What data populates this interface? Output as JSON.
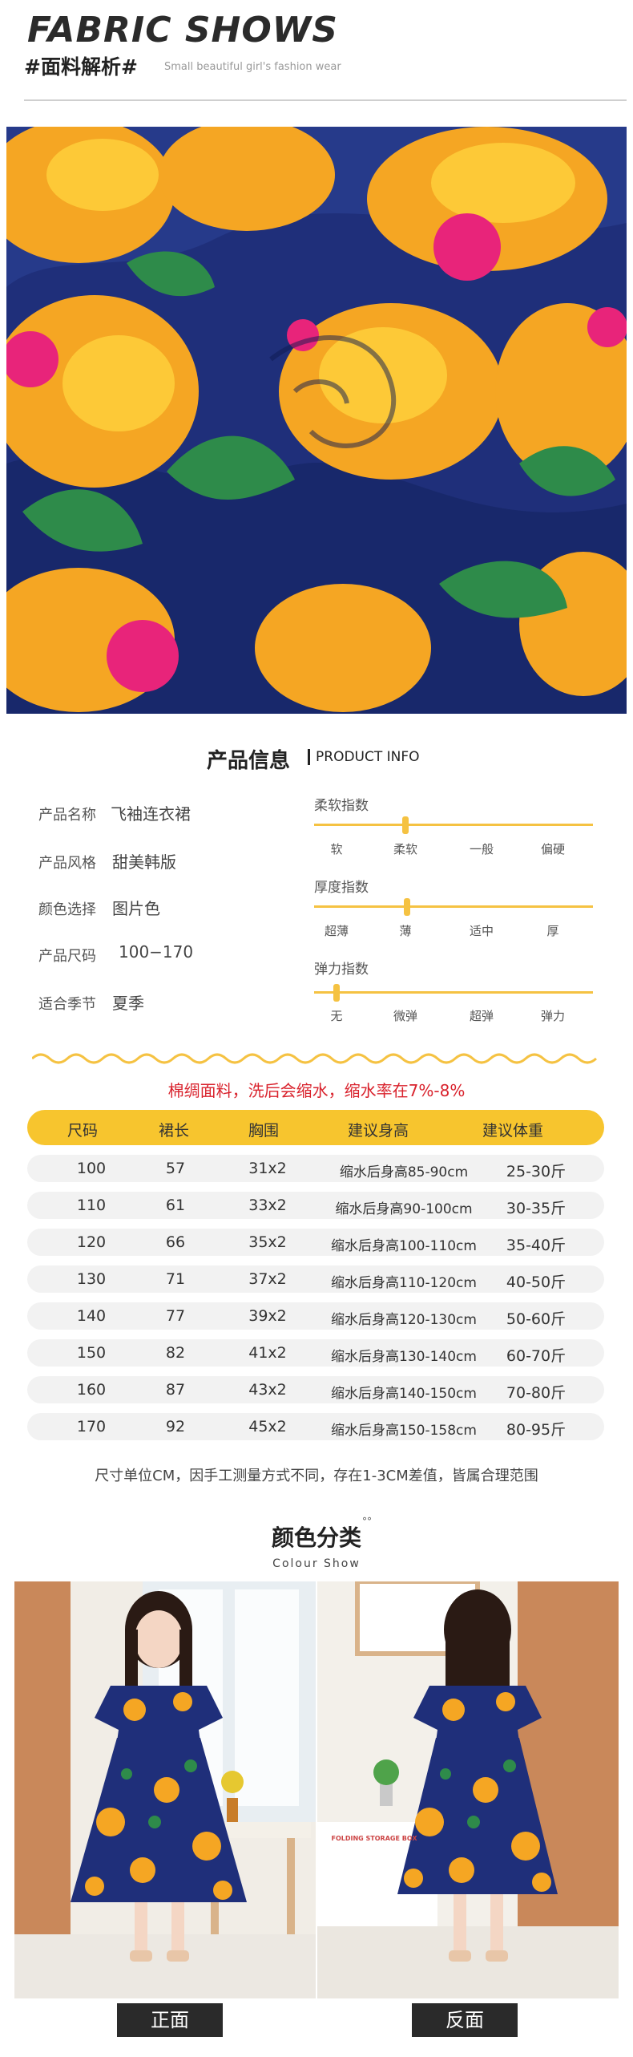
{
  "header": {
    "title": "FABRIC SHOWS",
    "subtitle": "#面料解析#",
    "subtitle_en": "Small beautiful girl's fashion wear"
  },
  "product_info": {
    "title_cn": "产品信息",
    "title_en": "PRODUCT INFO",
    "specs": [
      {
        "label": "产品名称",
        "value": "飞袖连衣裙"
      },
      {
        "label": "产品风格",
        "value": "甜美韩版"
      },
      {
        "label": "颜色选择",
        "value": "图片色"
      },
      {
        "label": "产品尺码",
        "value": "100−170"
      },
      {
        "label": "适合季节",
        "value": "夏季"
      }
    ],
    "indices": [
      {
        "label": "柔软指数",
        "ticks": [
          "软",
          "柔软",
          "一般",
          "偏硬"
        ],
        "selected_index": 1
      },
      {
        "label": "厚度指数",
        "ticks": [
          "超薄",
          "薄",
          "适中",
          "厚"
        ],
        "selected_index": 1
      },
      {
        "label": "弹力指数",
        "ticks": [
          "无",
          "微弹",
          "超弹",
          "弹力"
        ],
        "selected_index": 0
      }
    ]
  },
  "notice": "棉绸面料，洗后会缩水，缩水率在7%-8%",
  "size_table": {
    "headers": [
      "尺码",
      "裙长",
      "胸围",
      "建议身高",
      "建议体重"
    ],
    "rows": [
      [
        "100",
        "57",
        "31x2",
        "缩水后身高85-90cm",
        "25-30斤"
      ],
      [
        "110",
        "61",
        "33x2",
        "缩水后身高90-100cm",
        "30-35斤"
      ],
      [
        "120",
        "66",
        "35x2",
        "缩水后身高100-110cm",
        "35-40斤"
      ],
      [
        "130",
        "71",
        "37x2",
        "缩水后身高110-120cm",
        "40-50斤"
      ],
      [
        "140",
        "77",
        "39x2",
        "缩水后身高120-130cm",
        "50-60斤"
      ],
      [
        "150",
        "82",
        "41x2",
        "缩水后身高130-140cm",
        "60-70斤"
      ],
      [
        "160",
        "87",
        "43x2",
        "缩水后身高140-150cm",
        "70-80斤"
      ],
      [
        "170",
        "92",
        "45x2",
        "缩水后身高150-158cm",
        "80-95斤"
      ]
    ],
    "note": "尺寸单位CM，因手工测量方式不同，存在1-3CM差值，皆属合理范围"
  },
  "colour_section": {
    "title": "颜色分类",
    "title_en": "Colour Show",
    "dots": "°°",
    "front_caption": "正面",
    "back_caption": "反面",
    "box_text": "FOLDING STORAGE BOX"
  },
  "colors": {
    "accent_yellow": "#f7c52e",
    "navy": "#1f2f7a",
    "flower_orange": "#f39c12",
    "notice_red": "#d9232d"
  }
}
